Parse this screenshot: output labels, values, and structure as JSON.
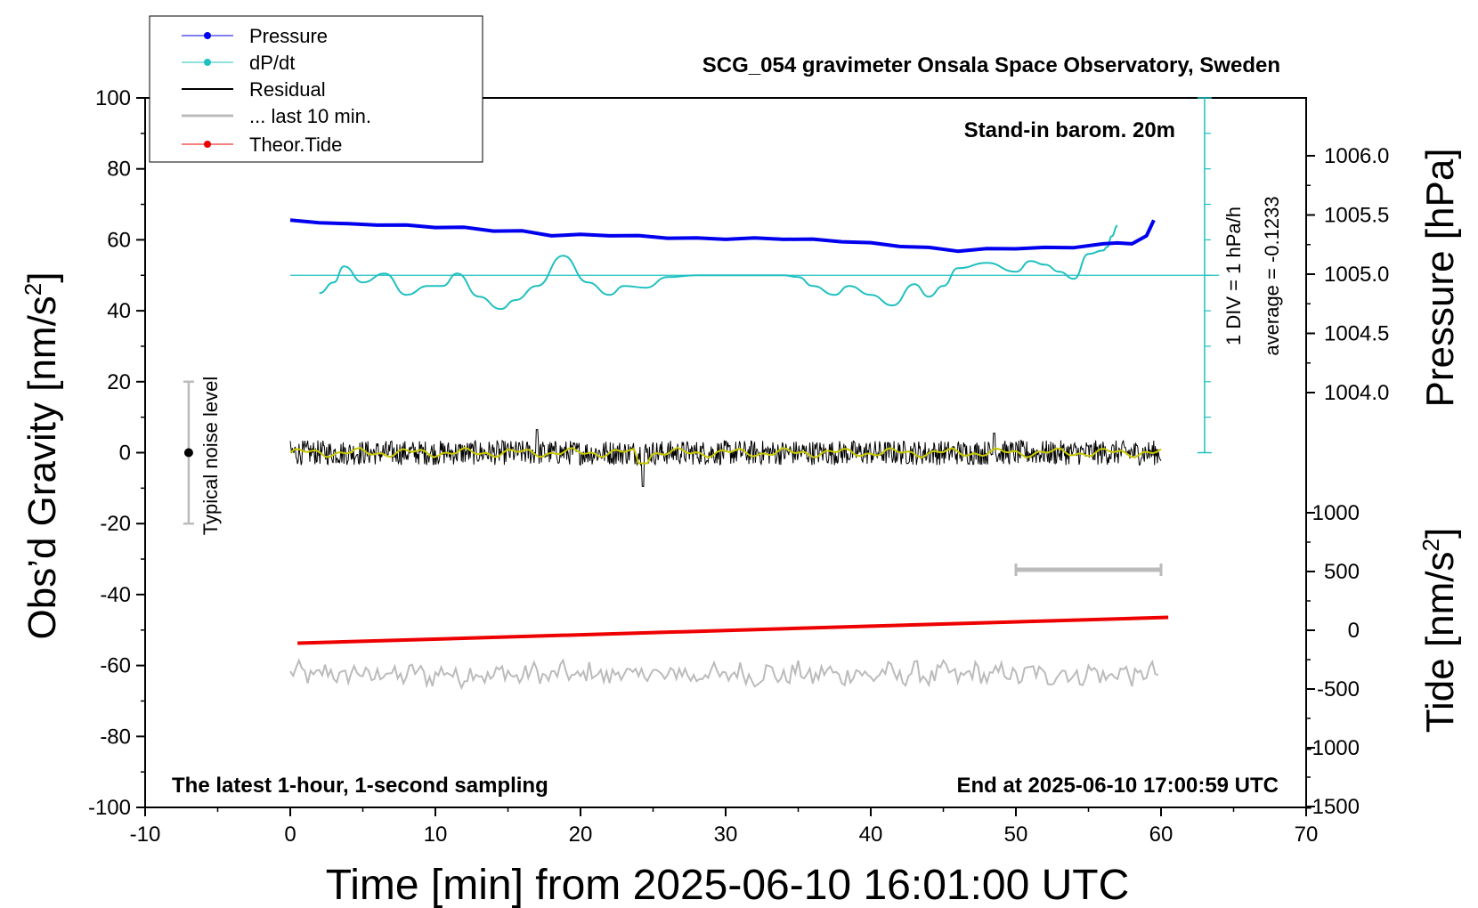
{
  "chart_data": {
    "type": "line",
    "title": "SCG_054 gravimeter Onsala Space Observatory, Sweden",
    "xlabel": "Time [min] from 2025-06-10 16:01:00 UTC",
    "ylabel_left": "Obs’d Gravity [nm/s",
    "ylabel_left_sup": "2",
    "ylabel_left_close": "]",
    "ylabel_right_pressure": "Pressure [hPa]",
    "ylabel_right_tide": "Tide [nm/s",
    "ylabel_right_tide_sup": "2",
    "ylabel_right_tide_close": "]",
    "xlim": [
      -10,
      70
    ],
    "ylim_left": [
      -100,
      100
    ],
    "pressure_range": [
      1004.0,
      1006.0
    ],
    "tide_range": [
      -1500,
      1000
    ],
    "x_ticks": [
      "-10",
      "0",
      "10",
      "20",
      "30",
      "40",
      "50",
      "60",
      "70"
    ],
    "y_ticks_left": [
      "100",
      "80",
      "60",
      "40",
      "20",
      "0",
      "-20",
      "-40",
      "-60",
      "-80",
      "-100"
    ],
    "y_ticks_pressure": [
      "1006.0",
      "1005.5",
      "1005.0",
      "1004.5",
      "1004.0"
    ],
    "y_ticks_tide": [
      "1000",
      "500",
      "0",
      "-500",
      "-1000",
      "-1500"
    ],
    "legend": {
      "position": "top-left",
      "items": [
        "Pressure",
        "dP/dt",
        "Residual",
        "... last 10 min.",
        "Theor.Tide"
      ]
    },
    "annotations": {
      "barometer": "Stand-in barom. 20m",
      "div_label": "1 DIV = 1 hPa/h",
      "average_label": "average = -0.1233",
      "noise_label": "Typical noise level",
      "sampling_label": "The latest 1-hour, 1-second sampling",
      "end_label": "End at 2025-06-10 17:00:59 UTC"
    },
    "noise_bar": {
      "x": -7,
      "y_center": 0,
      "half_range": 20
    },
    "last10_bar": {
      "x_start": 50,
      "x_end": 60,
      "y": -33
    },
    "series": [
      {
        "name": "Pressure",
        "color": "#0000ee",
        "unit": "hPa",
        "x": [
          0,
          2,
          4,
          6,
          8,
          10,
          12,
          14,
          16,
          18,
          20,
          22,
          24,
          26,
          28,
          30,
          32,
          34,
          36,
          38,
          40,
          42,
          44,
          46,
          48,
          50,
          52,
          54,
          56,
          57,
          58,
          59,
          59.5
        ],
        "values": [
          1005.45,
          1005.44,
          1005.42,
          1005.42,
          1005.41,
          1005.4,
          1005.39,
          1005.37,
          1005.36,
          1005.33,
          1005.33,
          1005.33,
          1005.32,
          1005.31,
          1005.3,
          1005.3,
          1005.3,
          1005.3,
          1005.29,
          1005.28,
          1005.26,
          1005.24,
          1005.22,
          1005.2,
          1005.21,
          1005.22,
          1005.22,
          1005.23,
          1005.25,
          1005.27,
          1005.25,
          1005.33,
          1005.45
        ]
      },
      {
        "name": "dP/dt",
        "color": "#20c0c0",
        "unit": "nm/s2 plot scale",
        "x": [
          2,
          3,
          3.7,
          5,
          6.5,
          8,
          9.5,
          10.5,
          11.5,
          13,
          14.5,
          15.5,
          17,
          18.8,
          20.5,
          22,
          23,
          24.5,
          26,
          28,
          30,
          32,
          34,
          35,
          36,
          37.5,
          38.5,
          40,
          41.5,
          43,
          44,
          45,
          46,
          48,
          50,
          51,
          52,
          53,
          54,
          55,
          56,
          56.3,
          56.6,
          57
        ],
        "values": [
          45,
          48,
          52.5,
          48,
          50.5,
          44.5,
          47,
          47,
          50.5,
          44,
          40.5,
          43,
          47,
          55.5,
          48,
          44.5,
          47,
          46.5,
          49.5,
          50,
          50,
          50,
          50,
          49.5,
          47,
          44.5,
          47,
          44.5,
          41.5,
          47.5,
          44,
          47,
          52,
          53.5,
          51,
          54,
          53,
          51,
          49,
          56,
          57,
          58,
          61,
          64
        ]
      },
      {
        "name": "Theor.Tide",
        "color": "#ee0000",
        "unit": "nm/s2",
        "x": [
          0.5,
          60.5
        ],
        "values": [
          -110,
          110
        ]
      }
    ],
    "residual": {
      "name": "Residual",
      "color": "#000000",
      "x_range": [
        0,
        60
      ],
      "center": 0,
      "noise_amplitude": 3.5,
      "spikes": [
        {
          "x": 24.3,
          "y": -9.5
        },
        {
          "x": 17,
          "y": 6.5
        },
        {
          "x": 48.5,
          "y": 5.5
        }
      ]
    },
    "residual_smooth": {
      "color": "#c8c800"
    },
    "last10": {
      "name": "... last 10 min.",
      "color": "#bbbbbb",
      "x_range": [
        0,
        60
      ],
      "center": -62.5,
      "noise_amplitude": 2.8
    }
  }
}
